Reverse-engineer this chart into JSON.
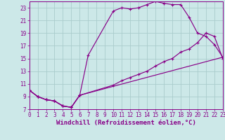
{
  "background_color": "#cce8e8",
  "grid_color": "#aacccc",
  "line_color": "#880088",
  "xlabel": "Windchill (Refroidissement éolien,°C)",
  "xlim": [
    0,
    23
  ],
  "ylim": [
    7,
    24
  ],
  "xticks": [
    0,
    1,
    2,
    3,
    4,
    5,
    6,
    7,
    8,
    9,
    10,
    11,
    12,
    13,
    14,
    15,
    16,
    17,
    18,
    19,
    20,
    21,
    22,
    23
  ],
  "yticks": [
    7,
    9,
    11,
    13,
    15,
    17,
    19,
    21,
    23
  ],
  "line1_x": [
    0,
    1,
    2,
    3,
    4,
    5,
    6,
    7,
    10,
    11,
    12,
    13,
    14,
    15,
    16,
    17,
    18,
    19,
    20,
    21,
    22,
    23
  ],
  "line1_y": [
    10.0,
    9.0,
    8.5,
    8.3,
    7.5,
    7.3,
    9.2,
    15.5,
    22.5,
    23.0,
    22.8,
    23.0,
    23.5,
    24.0,
    23.7,
    23.5,
    23.5,
    21.5,
    19.0,
    18.5,
    17.2,
    15.2
  ],
  "line2_x": [
    0,
    1,
    2,
    3,
    4,
    5,
    6,
    23
  ],
  "line2_y": [
    10.0,
    9.0,
    8.5,
    8.3,
    7.5,
    7.3,
    9.2,
    15.2
  ],
  "line3_x": [
    0,
    1,
    2,
    3,
    4,
    5,
    6,
    10,
    11,
    12,
    13,
    14,
    15,
    16,
    17,
    18,
    19,
    20,
    21,
    22,
    23
  ],
  "line3_y": [
    10.0,
    9.0,
    8.5,
    8.3,
    7.5,
    7.3,
    9.2,
    10.8,
    11.5,
    12.0,
    12.5,
    13.0,
    13.8,
    14.5,
    15.0,
    16.0,
    16.5,
    17.5,
    19.0,
    18.5,
    15.0
  ],
  "tick_fontsize": 5.5,
  "label_fontsize": 6.5
}
